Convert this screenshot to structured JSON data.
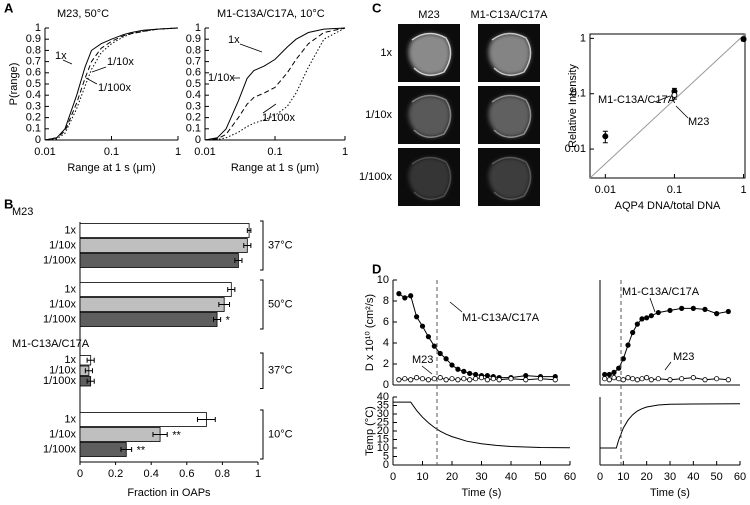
{
  "panel_labels": [
    "A",
    "B",
    "C",
    "D"
  ],
  "image_grid": {
    "columns": [
      "M23",
      "M1-C13A/C17A"
    ],
    "rows": [
      "1x",
      "1/10x",
      "1/100x"
    ]
  },
  "chart_data": [
    {
      "type": "line",
      "title": "M23, 50°C",
      "ylabel": "P(range)",
      "xlabel": "Range at 1 s (μm)",
      "xlog": true,
      "xlim": [
        0.01,
        1
      ],
      "xticks": [
        0.01,
        0.1,
        1
      ],
      "ylim": [
        0,
        1
      ],
      "yticks": [
        0,
        0.1,
        0.2,
        0.3,
        0.4,
        0.5,
        0.6,
        0.7,
        0.8,
        0.9,
        1
      ],
      "x": [
        0.01,
        0.015,
        0.02,
        0.03,
        0.04,
        0.05,
        0.07,
        0.1,
        0.15,
        0.2,
        0.3,
        0.5,
        1
      ],
      "series": [
        {
          "name": "1x",
          "color": "#000000",
          "dash": "solid",
          "values": [
            0,
            0.02,
            0.1,
            0.4,
            0.65,
            0.8,
            0.86,
            0.9,
            0.94,
            0.96,
            0.98,
            0.99,
            1
          ]
        },
        {
          "name": "1/10x",
          "color": "#000000",
          "dash": "dashed",
          "values": [
            0,
            0.02,
            0.08,
            0.33,
            0.55,
            0.7,
            0.82,
            0.88,
            0.93,
            0.95,
            0.97,
            0.99,
            1
          ]
        },
        {
          "name": "1/100x",
          "color": "#000000",
          "dash": "dotted",
          "values": [
            0,
            0.01,
            0.06,
            0.28,
            0.48,
            0.63,
            0.78,
            0.86,
            0.92,
            0.95,
            0.97,
            0.99,
            1
          ]
        }
      ]
    },
    {
      "type": "line",
      "title": "M1-C13A/C17A, 10°C",
      "xlabel": "Range at 1 s (μm)",
      "xlog": true,
      "xlim": [
        0.01,
        1
      ],
      "xticks": [
        0.01,
        0.1,
        1
      ],
      "ylim": [
        0,
        1
      ],
      "yticks": [
        0,
        0.1,
        0.2,
        0.3,
        0.4,
        0.5,
        0.6,
        0.7,
        0.8,
        0.9,
        1
      ],
      "x": [
        0.01,
        0.015,
        0.02,
        0.03,
        0.04,
        0.05,
        0.07,
        0.1,
        0.15,
        0.2,
        0.3,
        0.5,
        1
      ],
      "series": [
        {
          "name": "1x",
          "color": "#000000",
          "dash": "solid",
          "values": [
            0,
            0.02,
            0.1,
            0.35,
            0.55,
            0.62,
            0.66,
            0.72,
            0.83,
            0.9,
            0.96,
            0.99,
            1
          ]
        },
        {
          "name": "1/10x",
          "color": "#000000",
          "dash": "dashed",
          "values": [
            0,
            0.01,
            0.05,
            0.2,
            0.32,
            0.38,
            0.42,
            0.47,
            0.6,
            0.72,
            0.86,
            0.96,
            1
          ]
        },
        {
          "name": "1/100x",
          "color": "#000000",
          "dash": "dotted",
          "values": [
            0,
            0.005,
            0.02,
            0.07,
            0.12,
            0.15,
            0.18,
            0.22,
            0.3,
            0.42,
            0.65,
            0.9,
            1
          ]
        }
      ]
    },
    {
      "type": "hbar",
      "xlabel": "Fraction in OAPs",
      "xlim": [
        0,
        1
      ],
      "xticks": [
        0,
        0.2,
        0.4,
        0.6,
        0.8,
        1
      ],
      "colors": [
        "#ffffff",
        "#bfbfbf",
        "#5e5e5e"
      ],
      "groups": [
        {
          "name": "M23",
          "blocks": [
            {
              "label": "37°C",
              "categories": [
                "1x",
                "1/10x",
                "1/100x"
              ],
              "values": [
                0.95,
                0.94,
                0.89
              ],
              "errors": [
                0.01,
                0.02,
                0.02
              ],
              "marks": [
                null,
                null,
                null
              ]
            },
            {
              "label": "50°C",
              "categories": [
                "1x",
                "1/10x",
                "1/100x"
              ],
              "values": [
                0.85,
                0.81,
                0.77
              ],
              "errors": [
                0.02,
                0.03,
                0.02
              ],
              "marks": [
                null,
                null,
                "*"
              ]
            }
          ]
        },
        {
          "name": "M1-C13A/C17A",
          "blocks": [
            {
              "label": "37°C",
              "categories": [
                "1x",
                "1/10x",
                "1/100x"
              ],
              "values": [
                0.06,
                0.05,
                0.06
              ],
              "errors": [
                0.02,
                0.02,
                0.02
              ],
              "marks": [
                null,
                null,
                null
              ]
            },
            {
              "label": "10°C",
              "categories": [
                "1x",
                "1/10x",
                "1/100x"
              ],
              "values": [
                0.71,
                0.45,
                0.26
              ],
              "errors": [
                0.05,
                0.04,
                0.03
              ],
              "marks": [
                null,
                "**",
                "**"
              ]
            }
          ]
        }
      ]
    },
    {
      "type": "scatter",
      "ylabel": "Relative Intensity",
      "xlabel": "AQP4 DNA/total DNA",
      "xlog": true,
      "ylog": true,
      "xlim": [
        0.006,
        1.05
      ],
      "xticks": [
        0.01,
        0.1,
        1
      ],
      "ylim": [
        0.003,
        1.2
      ],
      "yticks": [
        0.01,
        0.1,
        1
      ],
      "series": [
        {
          "name": "M1-C13A/C17A",
          "marker": "filled",
          "x": [
            0.01,
            0.1,
            1
          ],
          "values": [
            0.017,
            0.11,
            0.97
          ],
          "errors": [
            0.004,
            0.015,
            0.07
          ]
        },
        {
          "name": "M23",
          "marker": "open",
          "x": [
            0.1
          ],
          "values": [
            0.095
          ],
          "errors": [
            0.015
          ]
        }
      ]
    },
    {
      "type": "line",
      "ylabel": "D x 10¹⁰ (cm²/s)",
      "xlim": [
        0,
        60
      ],
      "ylim": [
        0,
        10
      ],
      "yticks": [
        0,
        2,
        4,
        6,
        8,
        10
      ],
      "series": [
        {
          "name": "M1-C13A/C17A",
          "color": "#000000",
          "marker": "filled",
          "x": [
            2,
            4,
            6,
            8,
            10,
            12,
            14,
            16,
            18,
            20,
            22,
            24,
            26,
            28,
            30,
            32,
            34,
            36,
            40,
            45,
            50,
            55
          ],
          "values": [
            8.7,
            8.3,
            8.5,
            6.5,
            5.6,
            4.6,
            3.7,
            3.0,
            2.5,
            1.9,
            1.5,
            1.3,
            1.1,
            1.0,
            0.9,
            0.9,
            0.8,
            0.7,
            0.7,
            0.9,
            0.8,
            0.8
          ]
        },
        {
          "name": "M23",
          "color": "#000000",
          "marker": "open",
          "x": [
            2,
            4,
            6,
            8,
            10,
            12,
            14,
            16,
            18,
            20,
            22,
            24,
            26,
            28,
            30,
            32,
            34,
            36,
            40,
            45,
            50,
            55
          ],
          "values": [
            0.5,
            0.6,
            0.5,
            0.7,
            0.6,
            0.5,
            0.6,
            0.7,
            0.5,
            0.6,
            0.5,
            0.6,
            0.5,
            0.6,
            0.7,
            0.5,
            0.6,
            0.5,
            0.6,
            0.5,
            0.6,
            0.5
          ]
        }
      ]
    },
    {
      "type": "line",
      "ylabel": "Temp (°C)",
      "xlabel": "Time (s)",
      "xlim": [
        0,
        60
      ],
      "xticks": [
        0,
        10,
        20,
        30,
        40,
        50,
        60
      ],
      "ylim": [
        0,
        40
      ],
      "yticks": [
        0,
        5,
        10,
        15,
        20,
        25,
        30,
        35,
        40
      ],
      "series": [
        {
          "color": "#000000",
          "x": [
            0,
            6,
            8,
            10,
            12,
            14,
            16,
            18,
            20,
            25,
            30,
            35,
            40,
            50,
            60
          ],
          "values": [
            37,
            37,
            32.1,
            28.1,
            24.8,
            22.1,
            19.9,
            18.1,
            16.7,
            14.0,
            12.5,
            11.5,
            10.9,
            10.3,
            10.1
          ]
        }
      ]
    },
    {
      "type": "line",
      "xlim": [
        0,
        60
      ],
      "ylim": [
        0,
        10
      ],
      "series": [
        {
          "name": "M1-C13A/C17A",
          "color": "#000000",
          "marker": "filled",
          "x": [
            2,
            4,
            6,
            8,
            10,
            12,
            14,
            16,
            18,
            20,
            22,
            25,
            30,
            35,
            40,
            45,
            50,
            55
          ],
          "values": [
            1.0,
            1.0,
            1.2,
            1.6,
            2.5,
            3.8,
            5.0,
            5.8,
            6.3,
            6.4,
            6.6,
            6.9,
            7.1,
            7.3,
            7.3,
            7.2,
            6.8,
            7.0
          ]
        },
        {
          "name": "M23",
          "color": "#000000",
          "marker": "open",
          "x": [
            2,
            4,
            6,
            8,
            10,
            12,
            14,
            16,
            18,
            20,
            22,
            25,
            30,
            35,
            40,
            45,
            50,
            55
          ],
          "values": [
            0.6,
            0.5,
            0.7,
            0.6,
            0.5,
            0.7,
            0.6,
            0.5,
            0.6,
            0.7,
            0.5,
            0.6,
            0.5,
            0.6,
            0.7,
            0.5,
            0.6,
            0.5
          ]
        }
      ]
    },
    {
      "type": "line",
      "xlabel": "Time (s)",
      "xlim": [
        0,
        60
      ],
      "xticks": [
        0,
        10,
        20,
        30,
        40,
        50,
        60
      ],
      "ylim": [
        0,
        40
      ],
      "series": [
        {
          "color": "#000000",
          "x": [
            0,
            7,
            8,
            10,
            12,
            14,
            16,
            18,
            20,
            25,
            30,
            40,
            60
          ],
          "values": [
            10,
            10,
            14.7,
            21.7,
            26.4,
            29.6,
            31.7,
            33.1,
            34.1,
            35.3,
            35.7,
            35.9,
            36
          ]
        }
      ]
    }
  ]
}
